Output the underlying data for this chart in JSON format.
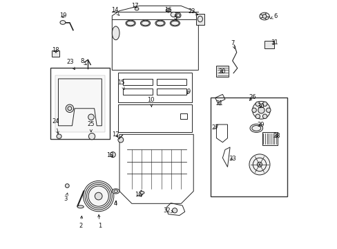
{
  "bg_color": "#ffffff",
  "fig_width": 4.89,
  "fig_height": 3.6,
  "dpi": 100,
  "label_positions": {
    "1": [
      0.22,
      0.91,
      0.215,
      0.855
    ],
    "2": [
      0.143,
      0.91,
      0.148,
      0.86
    ],
    "3": [
      0.082,
      0.8,
      0.09,
      0.775
    ],
    "4": [
      0.285,
      0.82,
      0.285,
      0.8
    ],
    "5": [
      0.527,
      0.068,
      0.538,
      0.085
    ],
    "6": [
      0.934,
      0.062,
      0.91,
      0.072
    ],
    "7": [
      0.76,
      0.17,
      0.768,
      0.195
    ],
    "8": [
      0.148,
      0.245,
      0.168,
      0.26
    ],
    "9": [
      0.58,
      0.368,
      0.57,
      0.385
    ],
    "10": [
      0.428,
      0.4,
      0.43,
      0.43
    ],
    "11": [
      0.377,
      0.785,
      0.39,
      0.795
    ],
    "12": [
      0.285,
      0.54,
      0.3,
      0.56
    ],
    "13": [
      0.262,
      0.625,
      0.275,
      0.63
    ],
    "14": [
      0.28,
      0.038,
      0.3,
      0.06
    ],
    "15": [
      0.306,
      0.33,
      0.32,
      0.36
    ],
    "16": [
      0.498,
      0.038,
      0.498,
      0.055
    ],
    "17": [
      0.363,
      0.02,
      0.37,
      0.038
    ],
    "18": [
      0.04,
      0.198,
      0.043,
      0.212
    ],
    "19": [
      0.07,
      0.058,
      0.072,
      0.078
    ],
    "20": [
      0.715,
      0.285,
      0.72,
      0.3
    ],
    "21": [
      0.704,
      0.415,
      0.71,
      0.43
    ],
    "22": [
      0.592,
      0.042,
      0.62,
      0.058
    ],
    "23": [
      0.1,
      0.248,
      0.12,
      0.28
    ],
    "24": [
      0.042,
      0.488,
      0.053,
      0.548
    ],
    "25": [
      0.184,
      0.498,
      0.185,
      0.54
    ],
    "26": [
      0.84,
      0.39,
      0.82,
      0.41
    ],
    "27": [
      0.688,
      0.512,
      0.7,
      0.525
    ],
    "28": [
      0.938,
      0.545,
      0.935,
      0.555
    ],
    "29": [
      0.873,
      0.5,
      0.86,
      0.51
    ],
    "30": [
      0.872,
      0.425,
      0.875,
      0.442
    ],
    "31": [
      0.93,
      0.168,
      0.92,
      0.178
    ],
    "32": [
      0.492,
      0.848,
      0.52,
      0.855
    ],
    "33": [
      0.758,
      0.638,
      0.748,
      0.645
    ]
  }
}
